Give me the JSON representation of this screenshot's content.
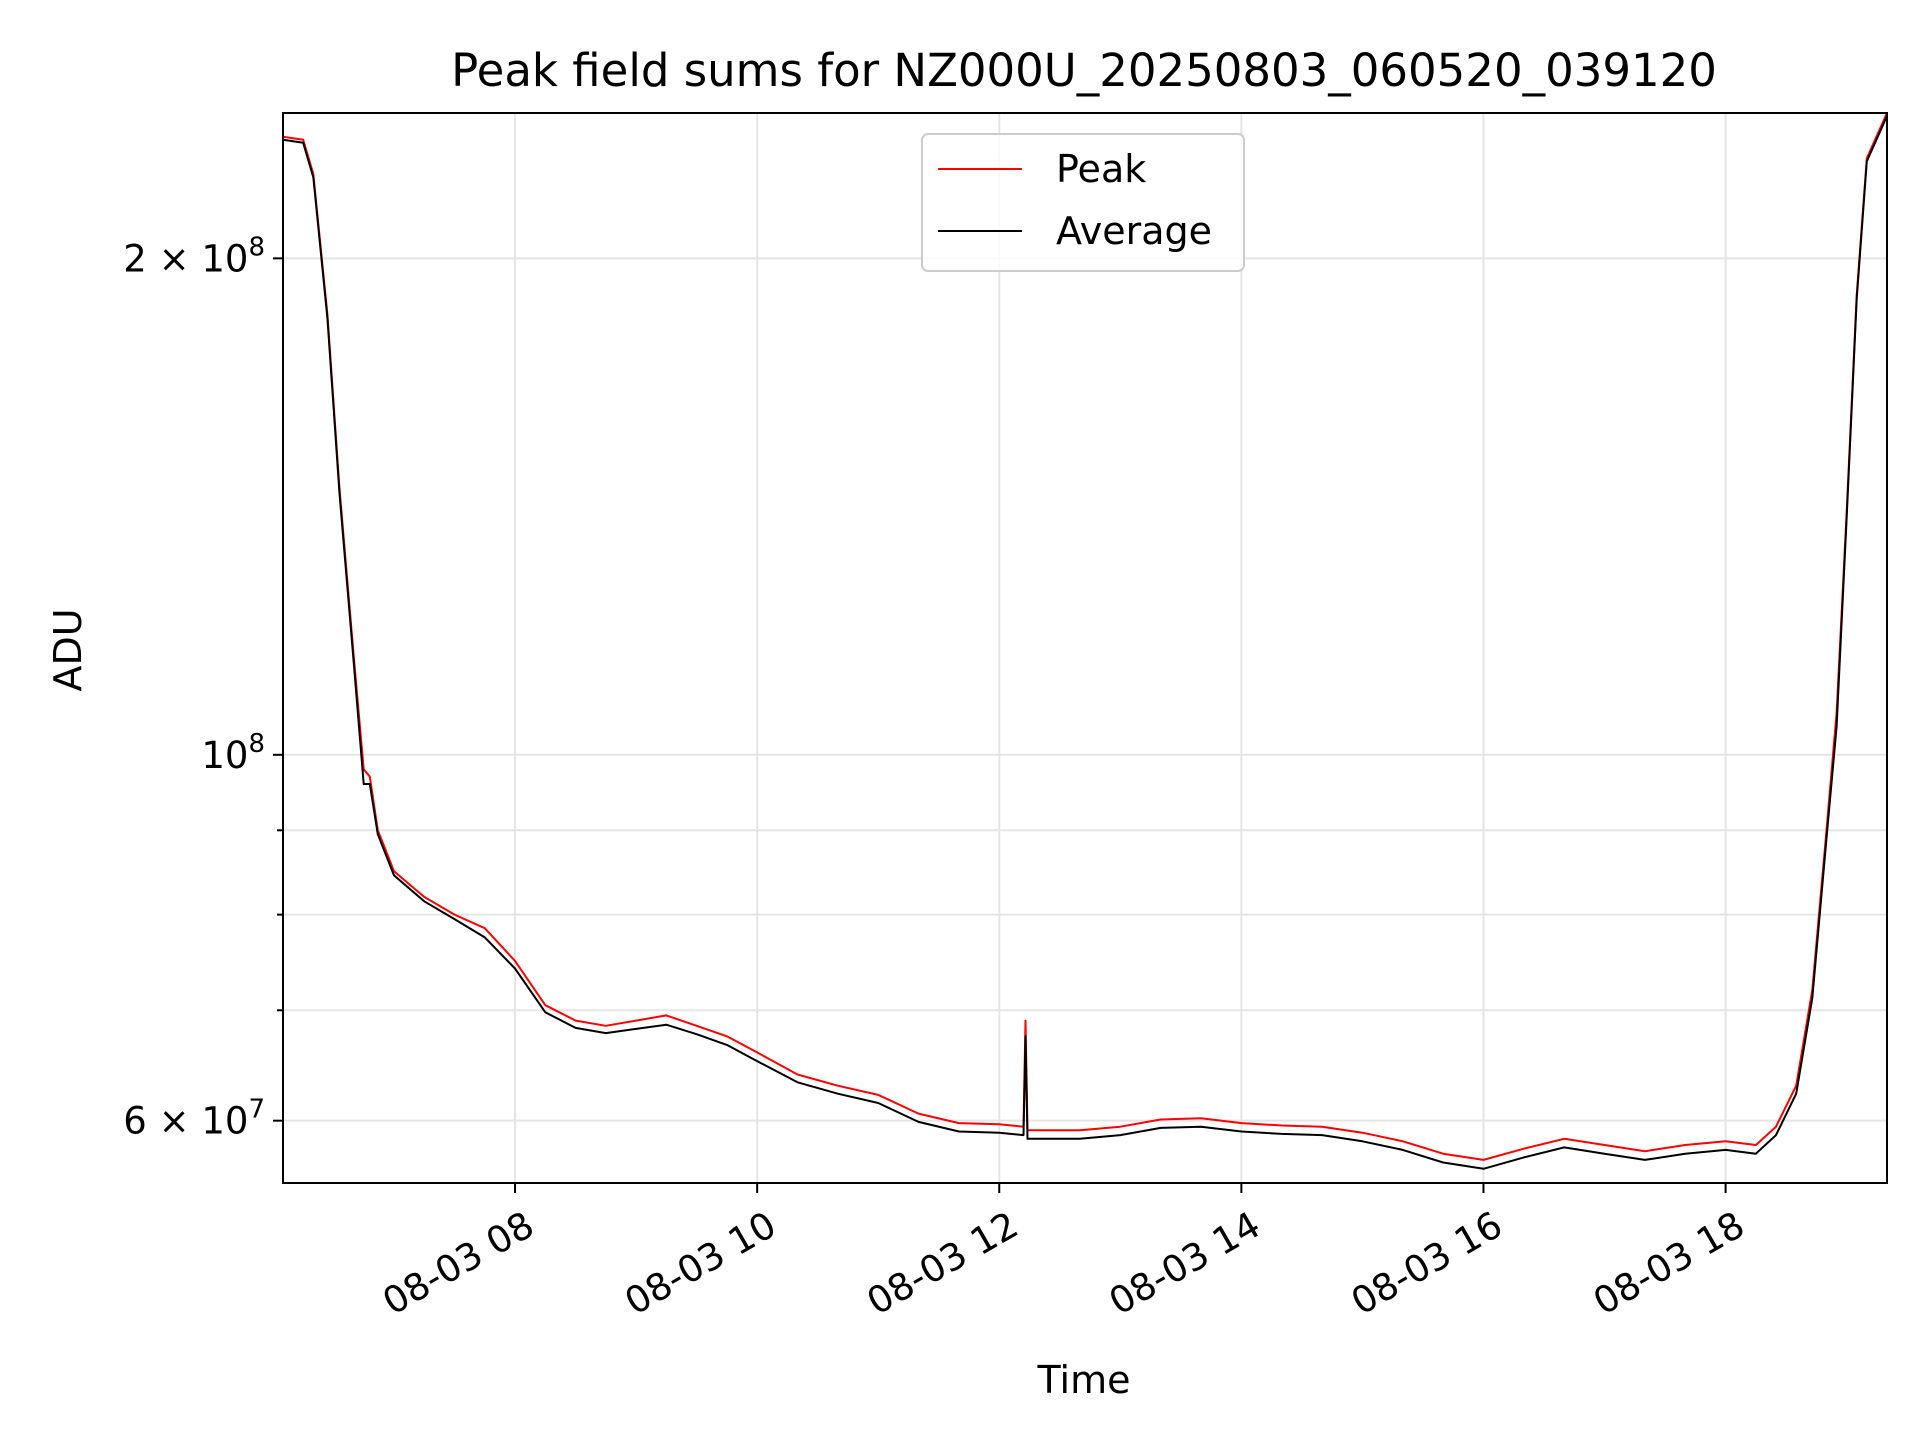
{
  "chart_data": {
    "type": "line",
    "title": "Peak field sums for NZ000U_20250803_060520_039120",
    "xlabel": "Time",
    "ylabel": "ADU",
    "yscale": "log",
    "xlim": [
      "2025-08-03 06:05",
      "2025-08-03 19:20"
    ],
    "ylim": [
      55000000,
      245000000
    ],
    "grid": true,
    "legend_placement": "upper center",
    "x_ticks": [
      {
        "value": "2025-08-03 08:00",
        "label": "08-03 08"
      },
      {
        "value": "2025-08-03 10:00",
        "label": "08-03 10"
      },
      {
        "value": "2025-08-03 12:00",
        "label": "08-03 12"
      },
      {
        "value": "2025-08-03 14:00",
        "label": "08-03 14"
      },
      {
        "value": "2025-08-03 16:00",
        "label": "08-03 16"
      },
      {
        "value": "2025-08-03 18:00",
        "label": "08-03 18"
      }
    ],
    "y_ticks": [
      {
        "value": 60000000,
        "mantissa": "6",
        "times": "×",
        "base": "10",
        "exponent": "7"
      },
      {
        "value": 100000000,
        "mantissa": "",
        "times": "",
        "base": "10",
        "exponent": "8"
      },
      {
        "value": 200000000,
        "mantissa": "2",
        "times": "×",
        "base": "10",
        "exponent": "8"
      }
    ],
    "y_minor_ticks": [
      70000000,
      80000000,
      90000000
    ],
    "series": [
      {
        "name": "Peak",
        "color": "#ff0000",
        "points": [
          [
            "2025-08-03 06:05",
            237000000
          ],
          [
            "2025-08-03 06:15",
            236000000
          ],
          [
            "2025-08-03 06:20",
            225000000
          ],
          [
            "2025-08-03 06:27",
            185000000
          ],
          [
            "2025-08-03 06:33",
            145000000
          ],
          [
            "2025-08-03 06:40",
            115000000
          ],
          [
            "2025-08-03 06:45",
            98000000
          ],
          [
            "2025-08-03 06:48",
            97000000
          ],
          [
            "2025-08-03 06:52",
            90000000
          ],
          [
            "2025-08-03 07:00",
            85000000
          ],
          [
            "2025-08-03 07:15",
            82000000
          ],
          [
            "2025-08-03 07:30",
            80000000
          ],
          [
            "2025-08-03 07:45",
            78500000
          ],
          [
            "2025-08-03 08:00",
            75000000
          ],
          [
            "2025-08-03 08:15",
            70500000
          ],
          [
            "2025-08-03 08:30",
            69000000
          ],
          [
            "2025-08-03 08:45",
            68500000
          ],
          [
            "2025-08-03 09:00",
            69000000
          ],
          [
            "2025-08-03 09:15",
            69500000
          ],
          [
            "2025-08-03 09:30",
            68500000
          ],
          [
            "2025-08-03 09:45",
            67500000
          ],
          [
            "2025-08-03 10:00",
            66000000
          ],
          [
            "2025-08-03 10:20",
            64000000
          ],
          [
            "2025-08-03 10:40",
            63000000
          ],
          [
            "2025-08-03 11:00",
            62200000
          ],
          [
            "2025-08-03 11:20",
            60600000
          ],
          [
            "2025-08-03 11:40",
            59800000
          ],
          [
            "2025-08-03 12:00",
            59700000
          ],
          [
            "2025-08-03 12:12",
            59500000
          ],
          [
            "2025-08-03 12:13",
            69000000
          ],
          [
            "2025-08-03 12:14",
            59200000
          ],
          [
            "2025-08-03 12:40",
            59200000
          ],
          [
            "2025-08-03 13:00",
            59500000
          ],
          [
            "2025-08-03 13:20",
            60100000
          ],
          [
            "2025-08-03 13:40",
            60200000
          ],
          [
            "2025-08-03 14:00",
            59800000
          ],
          [
            "2025-08-03 14:20",
            59600000
          ],
          [
            "2025-08-03 14:40",
            59500000
          ],
          [
            "2025-08-03 15:00",
            59000000
          ],
          [
            "2025-08-03 15:20",
            58300000
          ],
          [
            "2025-08-03 15:40",
            57300000
          ],
          [
            "2025-08-03 16:00",
            56800000
          ],
          [
            "2025-08-03 16:20",
            57700000
          ],
          [
            "2025-08-03 16:40",
            58500000
          ],
          [
            "2025-08-03 17:00",
            58000000
          ],
          [
            "2025-08-03 17:20",
            57500000
          ],
          [
            "2025-08-03 17:40",
            58000000
          ],
          [
            "2025-08-03 18:00",
            58300000
          ],
          [
            "2025-08-03 18:15",
            58000000
          ],
          [
            "2025-08-03 18:25",
            59500000
          ],
          [
            "2025-08-03 18:35",
            63000000
          ],
          [
            "2025-08-03 18:43",
            72000000
          ],
          [
            "2025-08-03 18:50",
            90000000
          ],
          [
            "2025-08-03 18:55",
            106000000
          ],
          [
            "2025-08-03 19:00",
            140000000
          ],
          [
            "2025-08-03 19:05",
            190000000
          ],
          [
            "2025-08-03 19:10",
            230000000
          ],
          [
            "2025-08-03 19:20",
            245000000
          ]
        ]
      },
      {
        "name": "Average",
        "color": "#000000",
        "points": [
          [
            "2025-08-03 06:05",
            236000000
          ],
          [
            "2025-08-03 06:15",
            235000000
          ],
          [
            "2025-08-03 06:20",
            224000000
          ],
          [
            "2025-08-03 06:27",
            184000000
          ],
          [
            "2025-08-03 06:33",
            144000000
          ],
          [
            "2025-08-03 06:40",
            114000000
          ],
          [
            "2025-08-03 06:45",
            96000000
          ],
          [
            "2025-08-03 06:48",
            96000000
          ],
          [
            "2025-08-03 06:52",
            89500000
          ],
          [
            "2025-08-03 07:00",
            84500000
          ],
          [
            "2025-08-03 07:15",
            81500000
          ],
          [
            "2025-08-03 07:30",
            79500000
          ],
          [
            "2025-08-03 07:45",
            77500000
          ],
          [
            "2025-08-03 08:00",
            74200000
          ],
          [
            "2025-08-03 08:15",
            69800000
          ],
          [
            "2025-08-03 08:30",
            68300000
          ],
          [
            "2025-08-03 08:45",
            67800000
          ],
          [
            "2025-08-03 09:00",
            68200000
          ],
          [
            "2025-08-03 09:15",
            68600000
          ],
          [
            "2025-08-03 09:30",
            67700000
          ],
          [
            "2025-08-03 09:45",
            66700000
          ],
          [
            "2025-08-03 10:00",
            65200000
          ],
          [
            "2025-08-03 10:20",
            63300000
          ],
          [
            "2025-08-03 10:40",
            62300000
          ],
          [
            "2025-08-03 11:00",
            61500000
          ],
          [
            "2025-08-03 11:20",
            59900000
          ],
          [
            "2025-08-03 11:40",
            59100000
          ],
          [
            "2025-08-03 12:00",
            59000000
          ],
          [
            "2025-08-03 12:12",
            58800000
          ],
          [
            "2025-08-03 12:13",
            67500000
          ],
          [
            "2025-08-03 12:14",
            58500000
          ],
          [
            "2025-08-03 12:40",
            58500000
          ],
          [
            "2025-08-03 13:00",
            58800000
          ],
          [
            "2025-08-03 13:20",
            59400000
          ],
          [
            "2025-08-03 13:40",
            59500000
          ],
          [
            "2025-08-03 14:00",
            59100000
          ],
          [
            "2025-08-03 14:20",
            58900000
          ],
          [
            "2025-08-03 14:40",
            58800000
          ],
          [
            "2025-08-03 15:00",
            58300000
          ],
          [
            "2025-08-03 15:20",
            57600000
          ],
          [
            "2025-08-03 15:40",
            56600000
          ],
          [
            "2025-08-03 16:00",
            56100000
          ],
          [
            "2025-08-03 16:20",
            57000000
          ],
          [
            "2025-08-03 16:40",
            57800000
          ],
          [
            "2025-08-03 17:00",
            57300000
          ],
          [
            "2025-08-03 17:20",
            56800000
          ],
          [
            "2025-08-03 17:40",
            57300000
          ],
          [
            "2025-08-03 18:00",
            57600000
          ],
          [
            "2025-08-03 18:15",
            57300000
          ],
          [
            "2025-08-03 18:25",
            58800000
          ],
          [
            "2025-08-03 18:35",
            62300000
          ],
          [
            "2025-08-03 18:43",
            71200000
          ],
          [
            "2025-08-03 18:50",
            89000000
          ],
          [
            "2025-08-03 18:55",
            104000000
          ],
          [
            "2025-08-03 19:00",
            139000000
          ],
          [
            "2025-08-03 19:05",
            189000000
          ],
          [
            "2025-08-03 19:10",
            229000000
          ],
          [
            "2025-08-03 19:20",
            244000000
          ]
        ]
      }
    ]
  }
}
